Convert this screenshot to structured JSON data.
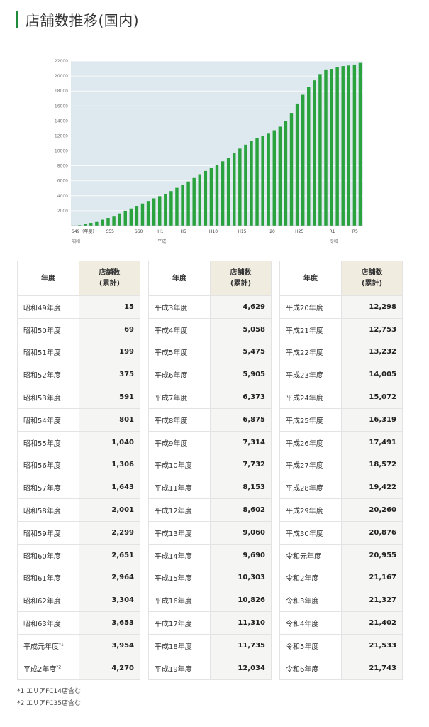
{
  "title": "店舗数推移(国内)",
  "colors": {
    "accent": "#1f8a3a",
    "bar": "#2aa33e",
    "plot_bg": "#dde9ef",
    "count_header_bg": "#f0ede0"
  },
  "chart_data": {
    "type": "bar",
    "ylim": [
      0,
      22000
    ],
    "yticks": [
      2000,
      4000,
      6000,
      8000,
      10000,
      12000,
      14000,
      16000,
      18000,
      20000,
      22000
    ],
    "grid": true,
    "categories": [
      "S49",
      "S50",
      "S51",
      "S52",
      "S53",
      "S54",
      "S55",
      "S56",
      "S57",
      "S58",
      "S59",
      "S60",
      "S61",
      "S62",
      "S63",
      "H1",
      "H2",
      "H3",
      "H4",
      "H5",
      "H6",
      "H7",
      "H8",
      "H9",
      "H10",
      "H11",
      "H12",
      "H13",
      "H14",
      "H15",
      "H16",
      "H17",
      "H18",
      "H19",
      "H20",
      "H21",
      "H22",
      "H23",
      "H24",
      "H25",
      "H26",
      "H27",
      "H28",
      "H29",
      "H30",
      "R1",
      "R2",
      "R3",
      "R4",
      "R5",
      "R6"
    ],
    "values": [
      15,
      69,
      199,
      375,
      591,
      801,
      1040,
      1306,
      1643,
      2001,
      2299,
      2651,
      2964,
      3304,
      3653,
      3954,
      4270,
      4629,
      5058,
      5475,
      5905,
      6373,
      6875,
      7314,
      7732,
      8153,
      8602,
      9060,
      9690,
      10303,
      10826,
      11310,
      11735,
      12034,
      12298,
      12753,
      13232,
      14005,
      15072,
      16319,
      17491,
      18572,
      19422,
      20260,
      20876,
      20955,
      21167,
      21327,
      21402,
      21533,
      21743
    ],
    "xtick_labels": [
      {
        "index": 0,
        "label": "S49（年度）"
      },
      {
        "index": 6,
        "label": "S55"
      },
      {
        "index": 11,
        "label": "S60"
      },
      {
        "index": 15,
        "label": "H1"
      },
      {
        "index": 19,
        "label": "H5"
      },
      {
        "index": 24,
        "label": "H10"
      },
      {
        "index": 29,
        "label": "H15"
      },
      {
        "index": 34,
        "label": "H20"
      },
      {
        "index": 39,
        "label": "H25"
      },
      {
        "index": 45,
        "label": "R1"
      },
      {
        "index": 49,
        "label": "R5"
      }
    ],
    "era_labels": [
      {
        "index": 0,
        "label": "昭和"
      },
      {
        "index": 15,
        "label": "平成"
      },
      {
        "index": 45,
        "label": "令和"
      }
    ]
  },
  "table": {
    "col_year": "年度",
    "col_count_line1": "店舗数",
    "col_count_line2": "(累計)",
    "col1": [
      {
        "year": "昭和49年度",
        "value": "15"
      },
      {
        "year": "昭和50年度",
        "value": "69"
      },
      {
        "year": "昭和51年度",
        "value": "199"
      },
      {
        "year": "昭和52年度",
        "value": "375"
      },
      {
        "year": "昭和53年度",
        "value": "591"
      },
      {
        "year": "昭和54年度",
        "value": "801"
      },
      {
        "year": "昭和55年度",
        "value": "1,040"
      },
      {
        "year": "昭和56年度",
        "value": "1,306"
      },
      {
        "year": "昭和57年度",
        "value": "1,643"
      },
      {
        "year": "昭和58年度",
        "value": "2,001"
      },
      {
        "year": "昭和59年度",
        "value": "2,299"
      },
      {
        "year": "昭和60年度",
        "value": "2,651"
      },
      {
        "year": "昭和61年度",
        "value": "2,964"
      },
      {
        "year": "昭和62年度",
        "value": "3,304"
      },
      {
        "year": "昭和63年度",
        "value": "3,653"
      },
      {
        "year": "平成元年度",
        "value": "3,954",
        "mark": "*1"
      },
      {
        "year": "平成2年度",
        "value": "4,270",
        "mark": "*2"
      }
    ],
    "col2": [
      {
        "year": "平成3年度",
        "value": "4,629"
      },
      {
        "year": "平成4年度",
        "value": "5,058"
      },
      {
        "year": "平成5年度",
        "value": "5,475"
      },
      {
        "year": "平成6年度",
        "value": "5,905"
      },
      {
        "year": "平成7年度",
        "value": "6,373"
      },
      {
        "year": "平成8年度",
        "value": "6,875"
      },
      {
        "year": "平成9年度",
        "value": "7,314"
      },
      {
        "year": "平成10年度",
        "value": "7,732"
      },
      {
        "year": "平成11年度",
        "value": "8,153"
      },
      {
        "year": "平成12年度",
        "value": "8,602"
      },
      {
        "year": "平成13年度",
        "value": "9,060"
      },
      {
        "year": "平成14年度",
        "value": "9,690"
      },
      {
        "year": "平成15年度",
        "value": "10,303"
      },
      {
        "year": "平成16年度",
        "value": "10,826"
      },
      {
        "year": "平成17年度",
        "value": "11,310"
      },
      {
        "year": "平成18年度",
        "value": "11,735"
      },
      {
        "year": "平成19年度",
        "value": "12,034"
      }
    ],
    "col3": [
      {
        "year": "平成20年度",
        "value": "12,298"
      },
      {
        "year": "平成21年度",
        "value": "12,753"
      },
      {
        "year": "平成22年度",
        "value": "13,232"
      },
      {
        "year": "平成23年度",
        "value": "14,005"
      },
      {
        "year": "平成24年度",
        "value": "15,072"
      },
      {
        "year": "平成25年度",
        "value": "16,319"
      },
      {
        "year": "平成26年度",
        "value": "17,491"
      },
      {
        "year": "平成27年度",
        "value": "18,572"
      },
      {
        "year": "平成28年度",
        "value": "19,422"
      },
      {
        "year": "平成29年度",
        "value": "20,260"
      },
      {
        "year": "平成30年度",
        "value": "20,876"
      },
      {
        "year": "令和元年度",
        "value": "20,955"
      },
      {
        "year": "令和2年度",
        "value": "21,167"
      },
      {
        "year": "令和3年度",
        "value": "21,327"
      },
      {
        "year": "令和4年度",
        "value": "21,402"
      },
      {
        "year": "令和5年度",
        "value": "21,533"
      },
      {
        "year": "令和6年度",
        "value": "21,743"
      }
    ]
  },
  "notes": [
    "*1 エリアFC14店含む",
    "*2 エリアFC35店含む"
  ]
}
